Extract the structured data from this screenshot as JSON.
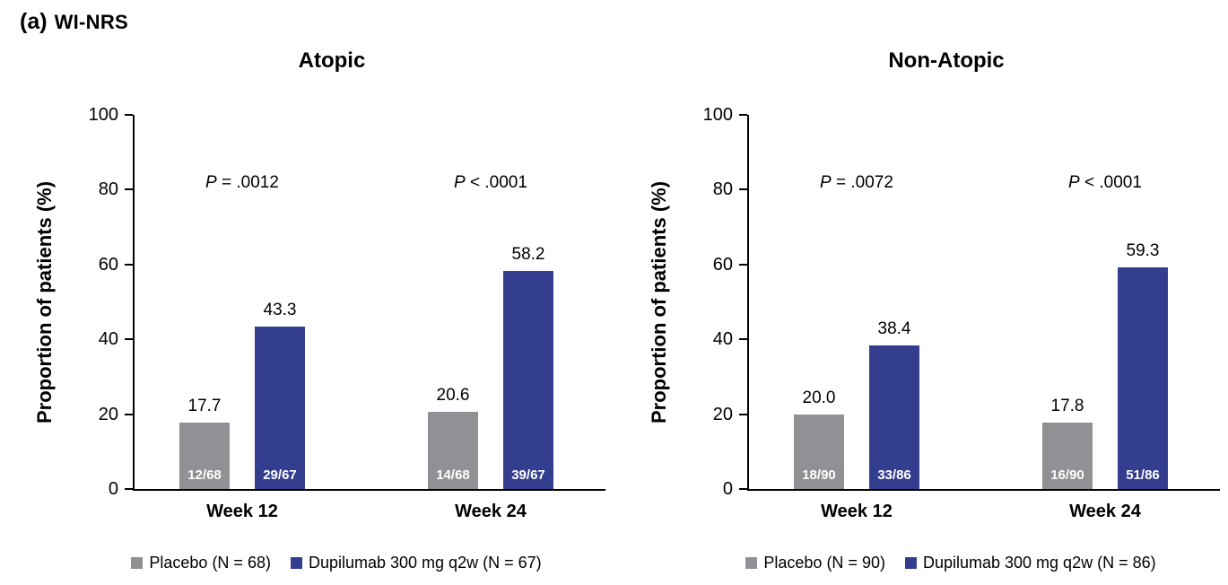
{
  "figure": {
    "label": "(a)",
    "title": "WI-NRS"
  },
  "colors": {
    "placebo": "#8f9194",
    "dupilumab": "#333e8f",
    "axis": "#000000"
  },
  "chart_data": [
    {
      "type": "bar",
      "title": "Atopic",
      "ylabel": "Proportion of patients (%)",
      "ylim": [
        0,
        100
      ],
      "yticks": [
        0,
        20,
        40,
        60,
        80,
        100
      ],
      "grid": false,
      "legend_position": "bottom",
      "categories": [
        "Week 12",
        "Week 24"
      ],
      "series": [
        {
          "name": "Placebo (N = 68)",
          "color": "#8f9194",
          "values": [
            17.7,
            20.6
          ],
          "value_labels": [
            "17.7",
            "20.6"
          ],
          "fractions": [
            "12/68",
            "14/68"
          ]
        },
        {
          "name": "Dupilumab 300 mg q2w (N = 67)",
          "color": "#333e8f",
          "values": [
            43.3,
            58.2
          ],
          "value_labels": [
            "43.3",
            "58.2"
          ],
          "fractions": [
            "29/67",
            "39/67"
          ]
        }
      ],
      "p_values": [
        "P = .0012",
        "P < .0001"
      ]
    },
    {
      "type": "bar",
      "title": "Non-Atopic",
      "ylabel": "Proportion of patients (%)",
      "ylim": [
        0,
        100
      ],
      "yticks": [
        0,
        20,
        40,
        60,
        80,
        100
      ],
      "grid": false,
      "legend_position": "bottom",
      "categories": [
        "Week 12",
        "Week 24"
      ],
      "series": [
        {
          "name": "Placebo (N = 90)",
          "color": "#8f9194",
          "values": [
            20.0,
            17.8
          ],
          "value_labels": [
            "20.0",
            "17.8"
          ],
          "fractions": [
            "18/90",
            "16/90"
          ]
        },
        {
          "name": "Dupilumab 300 mg q2w (N = 86)",
          "color": "#333e8f",
          "values": [
            38.4,
            59.3
          ],
          "value_labels": [
            "38.4",
            "59.3"
          ],
          "fractions": [
            "33/86",
            "51/86"
          ]
        }
      ],
      "p_values": [
        "P = .0072",
        "P < .0001"
      ]
    }
  ]
}
